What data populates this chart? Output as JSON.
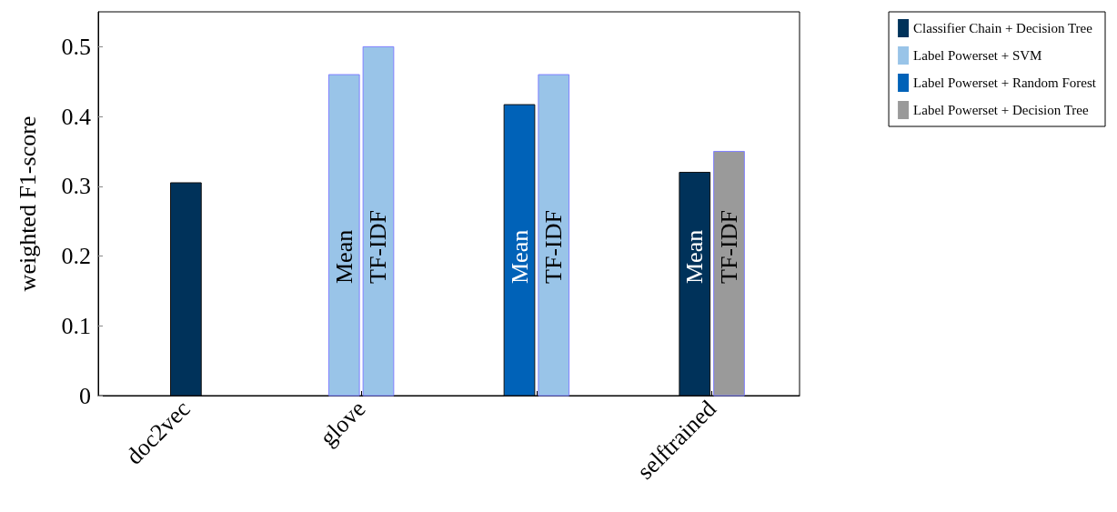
{
  "chart_data": {
    "type": "bar",
    "ylabel": "weighted F1-score",
    "categories": [
      "doc2vec",
      "glove",
      null,
      "selftrained"
    ],
    "series": [
      {
        "name": "Classifier Chain + Decision Tree",
        "color": "#00325a",
        "values": [
          0.305,
          null,
          null,
          0.32
        ],
        "value_labels": [
          null,
          null,
          null,
          "Mean"
        ]
      },
      {
        "name": "Label Powerset + SVM",
        "color": "#99c4e8",
        "values": [
          null,
          0.46,
          null,
          null
        ],
        "value_labels": [
          null,
          "Mean",
          null,
          null
        ]
      },
      {
        "name": "Label Powerset + Random Forest",
        "color": "#0062b8",
        "values": [
          null,
          null,
          0.417,
          null
        ],
        "value_labels": [
          null,
          null,
          "Mean",
          null
        ]
      },
      {
        "color": "#99c4e8",
        "values": [
          null,
          0.5,
          0.46,
          null
        ],
        "value_labels": [
          null,
          "TF-IDF",
          "TF-IDF",
          null
        ]
      },
      {
        "name": "Label Powerset + Decision Tree",
        "color": "#9a9a9a",
        "values": [
          null,
          null,
          null,
          0.35
        ],
        "value_labels": [
          null,
          null,
          null,
          "TF-IDF"
        ]
      }
    ],
    "ylim": [
      0,
      0.55
    ],
    "yticks": [
      0,
      0.1,
      0.2,
      0.3,
      0.4,
      0.5
    ],
    "grid": false,
    "legend": "top right"
  }
}
